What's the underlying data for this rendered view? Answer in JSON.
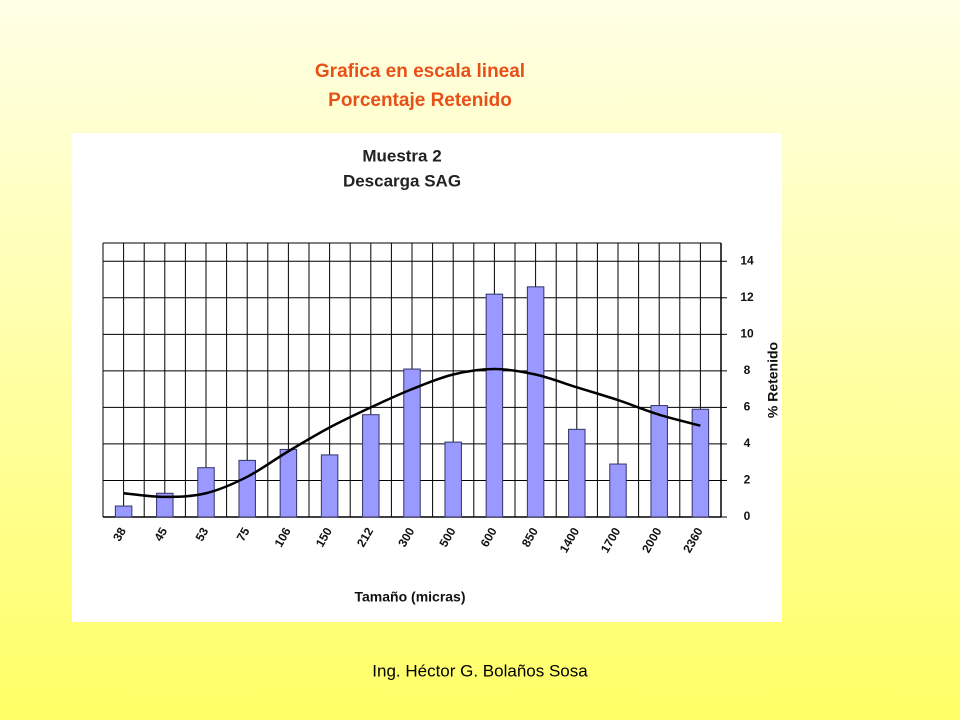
{
  "slide": {
    "title": [
      "Grafica en escala lineal",
      "Porcentaje Retenido"
    ],
    "footer": "Ing. Héctor G. Bolaños Sosa"
  },
  "chart_data": {
    "type": "bar",
    "title": "Muestra 2",
    "subtitle": "Descarga SAG",
    "x_label": "Tamaño (micras)",
    "y_label": "% Retenido",
    "categories": [
      "38",
      "45",
      "53",
      "75",
      "106",
      "150",
      "212",
      "300",
      "500",
      "600",
      "850",
      "1400",
      "1700",
      "2000",
      "2360"
    ],
    "values": [
      0.6,
      1.3,
      2.7,
      3.1,
      3.7,
      3.4,
      5.6,
      8.1,
      4.1,
      12.2,
      12.6,
      4.8,
      2.9,
      6.1,
      5.9
    ],
    "color": "#9999ff",
    "trendline": {
      "color": "#000000",
      "values": [
        1.3,
        1.1,
        1.3,
        2.2,
        3.6,
        4.9,
        6.0,
        7.0,
        7.8,
        8.1,
        7.8,
        7.1,
        6.4,
        5.6,
        5.0
      ]
    },
    "ylim": [
      0,
      15
    ],
    "yticks": [
      0,
      2,
      4,
      6,
      8,
      10,
      12,
      14
    ],
    "grid": true
  }
}
